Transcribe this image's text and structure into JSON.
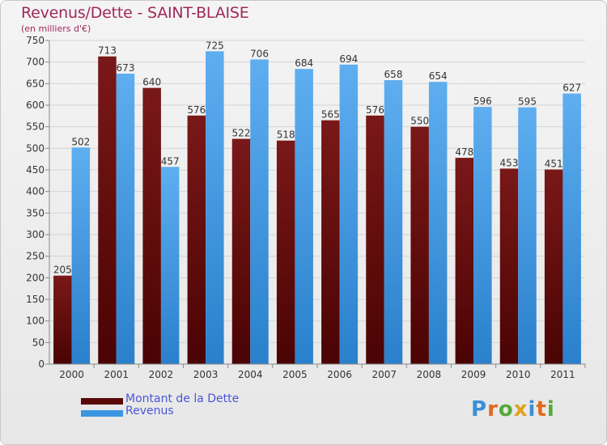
{
  "title": "Revenus/Dette - SAINT-BLAISE",
  "subtitle": "(en milliers d'€)",
  "logo": "Proxiti",
  "colors": {
    "dette": "#6b0d0d",
    "revenus": "#3a96e0",
    "title": "#a0295a",
    "legend_text": "#4a56d8"
  },
  "chart_data": {
    "type": "bar",
    "title": "Revenus/Dette - SAINT-BLAISE",
    "subtitle": "(en milliers d'€)",
    "categories": [
      "2000",
      "2001",
      "2002",
      "2003",
      "2004",
      "2005",
      "2006",
      "2007",
      "2008",
      "2009",
      "2010",
      "2011"
    ],
    "series": [
      {
        "name": "Montant de la Dette",
        "values": [
          205,
          713,
          640,
          576,
          522,
          518,
          565,
          576,
          550,
          478,
          453,
          451
        ]
      },
      {
        "name": "Revenus",
        "values": [
          502,
          673,
          457,
          725,
          706,
          684,
          694,
          658,
          654,
          596,
          595,
          627
        ]
      }
    ],
    "ylim": [
      0,
      750
    ],
    "yticks": [
      0,
      50,
      100,
      150,
      200,
      250,
      300,
      350,
      400,
      450,
      500,
      550,
      600,
      650,
      700,
      750
    ],
    "grid": true,
    "legend": "bottom-left"
  }
}
